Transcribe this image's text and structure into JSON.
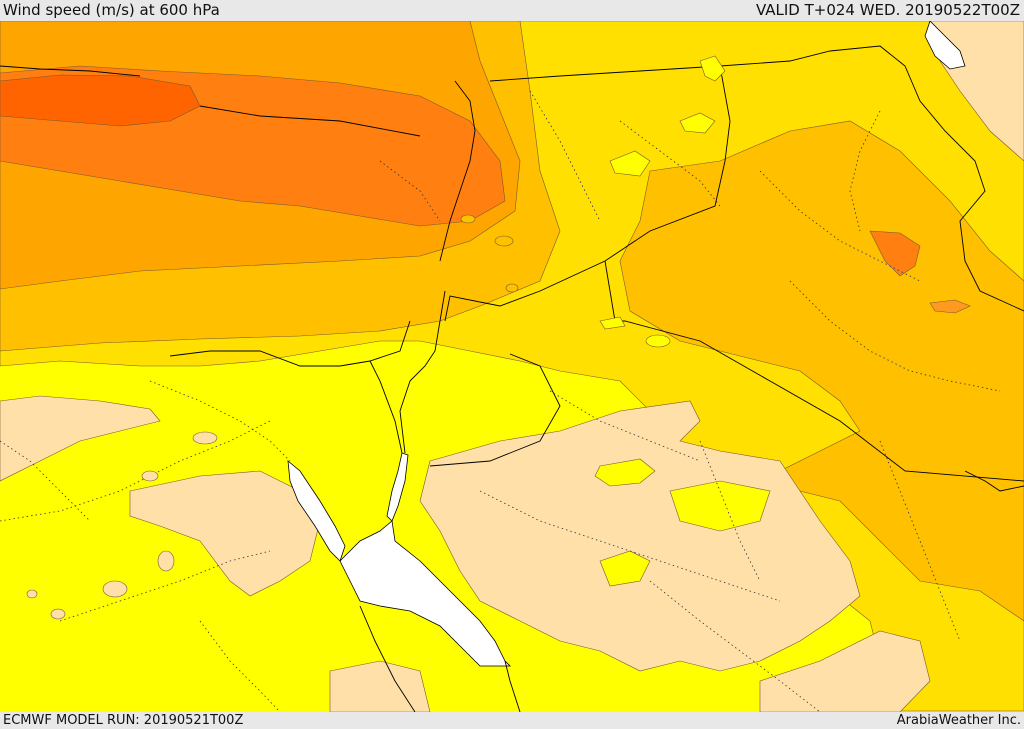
{
  "header": {
    "title": "Wind speed (m/s) at 600 hPa",
    "valid": "VALID T+024 WED. 20190522T00Z"
  },
  "footer": {
    "model_run": "ECMWF MODEL RUN: 20190521T00Z",
    "credit": "ArabiaWeather Inc."
  },
  "colors": {
    "band_tan": "#ffe0a8",
    "band_yellow": "#ffff00",
    "band_gold": "#ffe000",
    "band_amber": "#ffc000",
    "band_orange": "#ffa500",
    "band_dark_orange": "#ff7f10",
    "band_red_orange": "#ff6400",
    "sea_white": "#ffffff",
    "border": "#000000"
  }
}
